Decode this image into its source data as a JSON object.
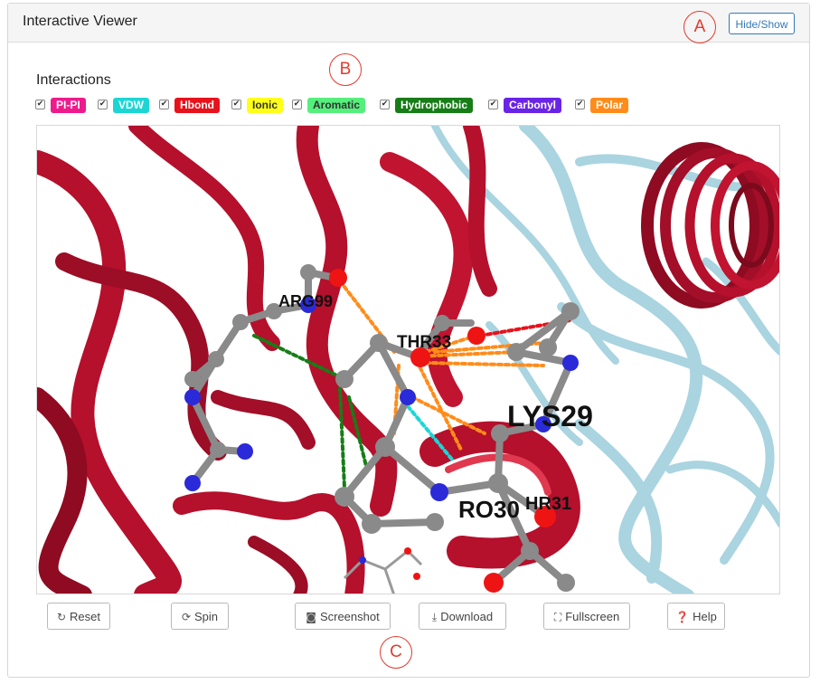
{
  "header": {
    "title": "Interactive Viewer",
    "toggle_label": "Hide/Show"
  },
  "annotations": {
    "a": "A",
    "b": "B",
    "c": "C"
  },
  "interactions": {
    "title": "Interactions",
    "types": [
      {
        "label": "PI-PI",
        "bg": "#ee1b8c",
        "fg": "#ffffff",
        "checked": true
      },
      {
        "label": "VDW",
        "bg": "#1cd6d6",
        "fg": "#ffffff",
        "checked": true
      },
      {
        "label": "Hbond",
        "bg": "#e8121b",
        "fg": "#ffffff",
        "checked": true
      },
      {
        "label": "Ionic",
        "bg": "#ffff1a",
        "fg": "#333333",
        "checked": true
      },
      {
        "label": "Aromatic",
        "bg": "#55f07c",
        "fg": "#333333",
        "checked": true
      },
      {
        "label": "Hydrophobic",
        "bg": "#177d17",
        "fg": "#ffffff",
        "checked": true
      },
      {
        "label": "Carbonyl",
        "bg": "#6a24e8",
        "fg": "#ffffff",
        "checked": true
      },
      {
        "label": "Polar",
        "bg": "#ff8c1a",
        "fg": "#ffffff",
        "checked": true
      }
    ]
  },
  "viewer": {
    "residues": [
      "ARG99",
      "THR33",
      "LYS29",
      "RO30",
      "HR31"
    ],
    "colors": {
      "ribbon": "#b5102c",
      "ribbon_dark": "#7a0a1c",
      "ribbon_light": "#a9d4e0",
      "carbon": "#8a8a8a",
      "nitrogen": "#2a2ad8",
      "oxygen": "#ee1414"
    }
  },
  "toolbar": {
    "reset": "Reset",
    "spin": "Spin",
    "screenshot": "Screenshot",
    "download": "Download",
    "fullscreen": "Fullscreen",
    "help": "Help"
  }
}
